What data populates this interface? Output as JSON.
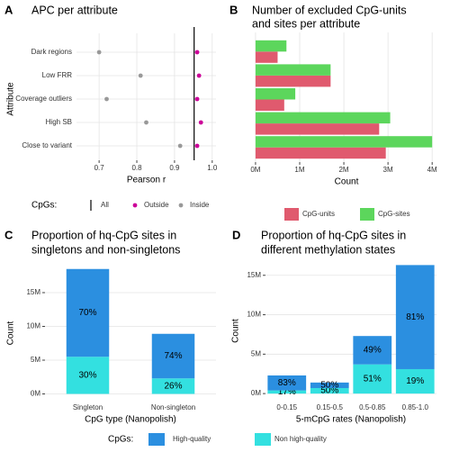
{
  "chart_data": [
    {
      "type": "dot",
      "panel": "A",
      "title": [
        "APC per attribute"
      ],
      "categories": [
        "Dark regions",
        "Low FRR",
        "Coverage outliers",
        "High SB",
        "Close to variant"
      ],
      "series": [
        {
          "name": "Outside",
          "color": "#cc0099",
          "values": [
            0.96,
            0.965,
            0.96,
            0.97,
            0.96
          ]
        },
        {
          "name": "Inside",
          "color": "#999999",
          "values": [
            0.7,
            0.81,
            0.72,
            0.825,
            0.915
          ]
        }
      ],
      "reference": {
        "name": "All",
        "value": 0.952
      },
      "legend_title": "CpGs:",
      "xlabel": "Pearson r",
      "ylabel": "Attribute",
      "xlim": [
        0.64,
        1.01
      ],
      "xticks": [
        0.7,
        0.8,
        0.9,
        {
          "value": 1,
          "label": "1.0"
        }
      ],
      "grid": true
    },
    {
      "type": "bar",
      "orientation": "horizontal",
      "panel": "B",
      "title": [
        "Number of excluded CpG-units",
        "and sites per attribute"
      ],
      "categories": [
        null,
        null,
        null,
        null,
        null
      ],
      "series": [
        {
          "name": "CpG-units",
          "color": "#e05a6e",
          "values": [
            500000,
            1700000,
            650000,
            2800000,
            2950000
          ]
        },
        {
          "name": "CpG-sites",
          "color": "#5cd65c",
          "values": [
            700000,
            1700000,
            900000,
            3050000,
            4000000
          ]
        }
      ],
      "xlabel": "Count",
      "xlim": [
        -80000,
        4200000
      ],
      "xticks": [
        {
          "value": 0,
          "label": "0M"
        },
        {
          "value": 1000000,
          "label": "1M"
        },
        {
          "value": 2000000,
          "label": "2M"
        },
        {
          "value": 3000000,
          "label": "3M"
        },
        {
          "value": 4000000,
          "label": "4M"
        }
      ],
      "grid": true
    },
    {
      "type": "stacked_bar",
      "panel": "C",
      "title": [
        "Proportion of hq-CpG sites in",
        "singletons and non-singletons"
      ],
      "categories": [
        "Singleton",
        "Non-singleton"
      ],
      "series": [
        {
          "name": "Non high-quality",
          "color": "#33e0e0",
          "values": [
            5500000,
            2300000
          ],
          "segment_labels": [
            "30%",
            "26%"
          ]
        },
        {
          "name": "High-quality",
          "color": "#2b8fe0",
          "values": [
            13000000,
            6600000
          ],
          "segment_labels": [
            "70%",
            "74%"
          ]
        }
      ],
      "legend_title": "CpGs:",
      "xlabel": "CpG type (Nanopolish)",
      "ylabel": "Count",
      "ylim": [
        -1000000,
        19000000
      ],
      "yticks": [
        {
          "value": 0,
          "label": "0M"
        },
        {
          "value": 5000000,
          "label": "5M"
        },
        {
          "value": 10000000,
          "label": "10M"
        },
        {
          "value": 15000000,
          "label": "15M"
        }
      ],
      "grid": true
    },
    {
      "type": "stacked_bar",
      "panel": "D",
      "title": [
        "Proportion of hq-CpG sites in",
        "different methylation states"
      ],
      "categories": [
        "0-0.15",
        "0.15-0.5",
        "0.5-0.85",
        "0.85-1.0"
      ],
      "series": [
        {
          "name": "Non high-quality",
          "color": "#33e0e0",
          "values": [
            400000,
            700000,
            3700000,
            3100000
          ],
          "segment_labels": [
            "17%",
            "50%",
            "51%",
            "19%"
          ]
        },
        {
          "name": "High-quality",
          "color": "#2b8fe0",
          "values": [
            1900000,
            700000,
            3600000,
            13200000
          ],
          "segment_labels": [
            "83%",
            "50%",
            "49%",
            "81%"
          ]
        }
      ],
      "xlabel": "5-mCpG rates (Nanopolish)",
      "ylabel": "Count",
      "ylim": [
        -900000,
        16800000
      ],
      "yticks": [
        {
          "value": 0,
          "label": "0M"
        },
        {
          "value": 5000000,
          "label": "5M"
        },
        {
          "value": 10000000,
          "label": "10M"
        },
        {
          "value": 15000000,
          "label": "15M"
        }
      ],
      "grid": true
    }
  ]
}
